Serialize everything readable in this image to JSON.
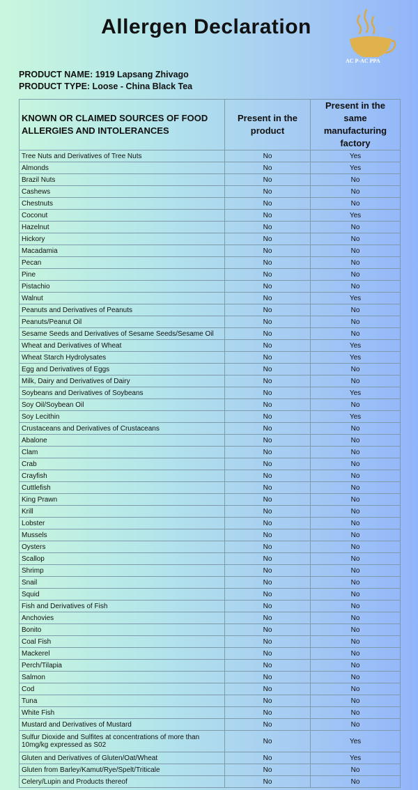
{
  "title": "Allergen Declaration",
  "logo": {
    "text": "AC P-AC PPA",
    "registered": "®"
  },
  "product": {
    "name": "PRODUCT NAME: 1919 Lapsang Zhivago",
    "type": "PRODUCT TYPE: Loose - China Black Tea"
  },
  "table": {
    "headers": [
      "KNOWN OR CLAIMED SOURCES OF FOOD ALLERGIES AND INTOLERANCES",
      "Present in the product",
      "Present in the same manufacturing factory"
    ],
    "rows": [
      [
        "Tree Nuts and Derivatives of Tree Nuts",
        "No",
        "Yes"
      ],
      [
        "Almonds",
        "No",
        "Yes"
      ],
      [
        "Brazil Nuts",
        "No",
        "No"
      ],
      [
        "Cashews",
        "No",
        "No"
      ],
      [
        "Chestnuts",
        "No",
        "No"
      ],
      [
        "Coconut",
        "No",
        "Yes"
      ],
      [
        "Hazelnut",
        "No",
        "No"
      ],
      [
        "Hickory",
        "No",
        "No"
      ],
      [
        "Macadamia",
        "No",
        "No"
      ],
      [
        "Pecan",
        "No",
        "No"
      ],
      [
        "Pine",
        "No",
        "No"
      ],
      [
        "Pistachio",
        "No",
        "No"
      ],
      [
        "Walnut",
        "No",
        "Yes"
      ],
      [
        "Peanuts and Derivatives of Peanuts",
        "No",
        "No"
      ],
      [
        "Peanuts/Peanut Oil",
        "No",
        "No"
      ],
      [
        "Sesame Seeds and Derivatives of Sesame Seeds/Sesame Oil",
        "No",
        "No"
      ],
      [
        "Wheat and Derivatives of Wheat",
        "No",
        "Yes"
      ],
      [
        "Wheat Starch Hydrolysates",
        "No",
        "Yes"
      ],
      [
        "Egg and Derivatives of Eggs",
        "No",
        "No"
      ],
      [
        "Milk, Dairy and Derivatives of Dairy",
        "No",
        "No"
      ],
      [
        "Soybeans and Derivatives of Soybeans",
        "No",
        "Yes"
      ],
      [
        "Soy Oil/Soybean Oil",
        "No",
        "No"
      ],
      [
        "Soy Lecithin",
        "No",
        "Yes"
      ],
      [
        "Crustaceans and Derivatives of Crustaceans",
        "No",
        "No"
      ],
      [
        "Abalone",
        "No",
        "No"
      ],
      [
        "Clam",
        "No",
        "No"
      ],
      [
        "Crab",
        "No",
        "No"
      ],
      [
        "Crayfish",
        "No",
        "No"
      ],
      [
        "Cuttlefish",
        "No",
        "No"
      ],
      [
        "King Prawn",
        "No",
        "No"
      ],
      [
        "Krill",
        "No",
        "No"
      ],
      [
        "Lobster",
        "No",
        "No"
      ],
      [
        "Mussels",
        "No",
        "No"
      ],
      [
        "Oysters",
        "No",
        "No"
      ],
      [
        "Scallop",
        "No",
        "No"
      ],
      [
        "Shrimp",
        "No",
        "No"
      ],
      [
        "Snail",
        "No",
        "No"
      ],
      [
        "Squid",
        "No",
        "No"
      ],
      [
        "Fish and Derivatives of Fish",
        "No",
        "No"
      ],
      [
        "Anchovies",
        "No",
        "No"
      ],
      [
        "Bonito",
        "No",
        "No"
      ],
      [
        "Coal Fish",
        "No",
        "No"
      ],
      [
        "Mackerel",
        "No",
        "No"
      ],
      [
        "Perch/Tilapia",
        "No",
        "No"
      ],
      [
        "Salmon",
        "No",
        "No"
      ],
      [
        "Cod",
        "No",
        "No"
      ],
      [
        "Tuna",
        "No",
        "No"
      ],
      [
        "White Fish",
        "No",
        "No"
      ],
      [
        "Mustard and Derivatives of Mustard",
        "No",
        "No"
      ],
      [
        "Sulfur Dioxide and Sulfites at concentrations of more than 10mg/kg expressed as S02",
        "No",
        "Yes"
      ],
      [
        "Gluten and Derivatives of Gluten/Oat/Wheat",
        "No",
        "Yes"
      ],
      [
        "Gluten from Barley/Kamut/Rye/Spelt/Triticale",
        "No",
        "No"
      ],
      [
        "Celery/Lupin and Products thereof",
        "No",
        "No"
      ]
    ]
  }
}
